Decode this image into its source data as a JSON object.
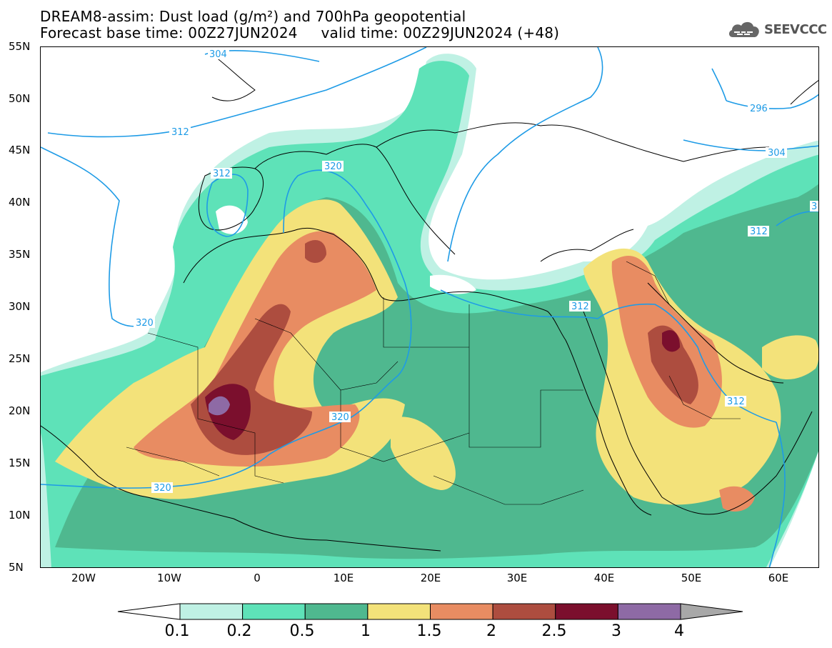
{
  "title": {
    "line1": "DREAM8-assim: Dust load (g/m²) and 700hPa geopotential",
    "line2": "Forecast base time: 00Z27JUN2024     valid time: 00Z29JUN2024 (+48)"
  },
  "logo": {
    "text": "SEEVCCC",
    "icon": "cloud-logo-icon"
  },
  "axes": {
    "lat_labels": [
      "55N",
      "50N",
      "45N",
      "40N",
      "35N",
      "30N",
      "25N",
      "20N",
      "15N",
      "10N",
      "5N"
    ],
    "lon_labels": [
      "20W",
      "10W",
      "0",
      "10E",
      "20E",
      "30E",
      "40E",
      "50E",
      "60E"
    ]
  },
  "contours": {
    "labels": [
      "304",
      "312",
      "312",
      "320",
      "320",
      "320",
      "320",
      "312",
      "312",
      "296",
      "304",
      "312",
      "3"
    ],
    "line_color": "#1e9be6"
  },
  "legend": {
    "levels": [
      "0.1",
      "0.2",
      "0.5",
      "1",
      "1.5",
      "2",
      "2.5",
      "3",
      "4"
    ],
    "colors": [
      "#ffffff",
      "#bff1e4",
      "#5ee2b8",
      "#4fb88f",
      "#f3e27a",
      "#e88c62",
      "#ad4d3f",
      "#7b0f2d",
      "#8e6aa5",
      "#a8a8a8"
    ]
  }
}
